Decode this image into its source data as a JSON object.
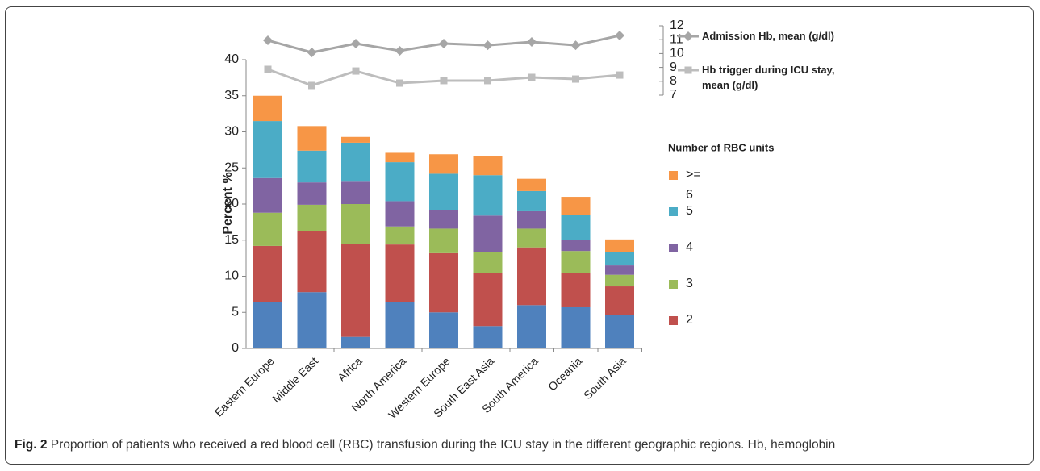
{
  "chart_data": {
    "type": "bar",
    "stacked": true,
    "y_label": "Percent  %",
    "categories": [
      "Eastern Europe",
      "Middle East",
      "Africa",
      "North America",
      "Western Europe",
      "South East Asia",
      "South America",
      "Oceania",
      "South Asia"
    ],
    "ylim": [
      0,
      40
    ],
    "yticks": [
      0,
      5,
      10,
      15,
      20,
      25,
      30,
      35,
      40
    ],
    "y2lim": [
      7,
      12
    ],
    "y2ticks": [
      7,
      8,
      9,
      10,
      11,
      12
    ],
    "legend_title": "Number of RBC units",
    "series": [
      {
        "color": "#4f81bd",
        "values": [
          6.4,
          7.8,
          1.6,
          6.4,
          5.0,
          3.1,
          6.0,
          5.7,
          4.6
        ]
      },
      {
        "name": "2",
        "color": "#c0504d",
        "values": [
          7.8,
          8.5,
          12.9,
          8.0,
          8.2,
          7.4,
          8.0,
          4.7,
          4.0
        ]
      },
      {
        "name": "3",
        "color": "#9bbb59",
        "values": [
          4.6,
          3.6,
          5.5,
          2.5,
          3.4,
          2.8,
          2.6,
          3.1,
          1.6
        ]
      },
      {
        "name": "4",
        "color": "#8064a2",
        "values": [
          4.8,
          3.1,
          3.1,
          3.5,
          2.6,
          5.1,
          2.4,
          1.5,
          1.3
        ]
      },
      {
        "name": "5",
        "color": "#4bacc6",
        "values": [
          7.9,
          4.4,
          5.4,
          5.4,
          5.0,
          5.6,
          2.8,
          3.5,
          1.8
        ]
      },
      {
        "name": ">= 6",
        "color": "#f79646",
        "values": [
          3.5,
          3.4,
          0.8,
          1.3,
          2.7,
          2.7,
          1.7,
          2.5,
          1.8
        ]
      },
      {
        "name": "Admission Hb, mean (g/dl)",
        "type": "line",
        "axis": "y2",
        "marker": "diamond",
        "color": "#a6a6a6",
        "values": [
          10.95,
          10.08,
          10.72,
          10.2,
          10.72,
          10.6,
          10.84,
          10.6,
          11.3
        ]
      },
      {
        "name": "Hb trigger during ICU stay, mean (g/dl)",
        "type": "line",
        "axis": "y2",
        "marker": "square",
        "color": "#bdbdbd",
        "values": [
          8.86,
          7.7,
          8.74,
          7.87,
          8.05,
          8.05,
          8.28,
          8.16,
          8.45
        ]
      }
    ]
  },
  "caption": {
    "label": "Fig. 2",
    "text": "Proportion of patients who received a red blood cell (RBC) transfusion during the ICU stay in the different geographic regions. Hb, hemoglobin"
  }
}
